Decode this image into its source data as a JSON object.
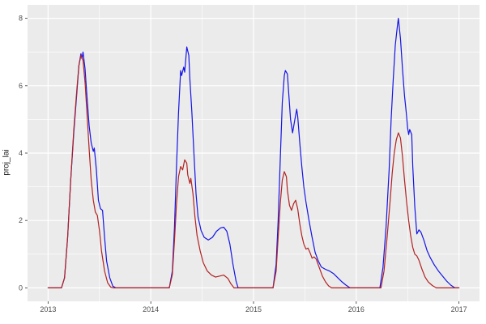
{
  "chart_data": {
    "type": "line",
    "title": "",
    "xlabel": "",
    "ylabel": "proj_lai",
    "xlim": [
      2012.8,
      2017.2
    ],
    "ylim": [
      -0.4,
      8.4
    ],
    "x_major_ticks": [
      2013,
      2014,
      2015,
      2016,
      2017
    ],
    "x_minor_ticks": [
      2013.5,
      2014.5,
      2015.5,
      2016.5
    ],
    "y_major_ticks": [
      0,
      2,
      4,
      6,
      8
    ],
    "y_minor_ticks": [
      1,
      3,
      5,
      7
    ],
    "grid": "on",
    "legend_position": "none",
    "panel_background": "#ebebeb",
    "grid_color": "#ffffff",
    "tick_color": "#333333",
    "series": [
      {
        "name": "blue-line",
        "color": "#1414e6",
        "points": [
          [
            2013.0,
            0
          ],
          [
            2013.13,
            0
          ],
          [
            2013.16,
            0.3
          ],
          [
            2013.19,
            1.5
          ],
          [
            2013.22,
            3.2
          ],
          [
            2013.25,
            4.6
          ],
          [
            2013.28,
            5.8
          ],
          [
            2013.3,
            6.6
          ],
          [
            2013.32,
            6.95
          ],
          [
            2013.33,
            6.8
          ],
          [
            2013.34,
            7.0
          ],
          [
            2013.36,
            6.5
          ],
          [
            2013.38,
            5.6
          ],
          [
            2013.4,
            4.8
          ],
          [
            2013.42,
            4.3
          ],
          [
            2013.44,
            4.05
          ],
          [
            2013.45,
            4.15
          ],
          [
            2013.47,
            3.5
          ],
          [
            2013.49,
            2.6
          ],
          [
            2013.51,
            2.35
          ],
          [
            2013.53,
            2.3
          ],
          [
            2013.55,
            1.5
          ],
          [
            2013.57,
            0.8
          ],
          [
            2013.6,
            0.3
          ],
          [
            2013.63,
            0.05
          ],
          [
            2013.66,
            0
          ],
          [
            2014.18,
            0
          ],
          [
            2014.21,
            0.5
          ],
          [
            2014.23,
            1.8
          ],
          [
            2014.25,
            3.6
          ],
          [
            2014.27,
            5.2
          ],
          [
            2014.29,
            6.45
          ],
          [
            2014.3,
            6.3
          ],
          [
            2014.32,
            6.55
          ],
          [
            2014.33,
            6.4
          ],
          [
            2014.35,
            7.15
          ],
          [
            2014.37,
            6.9
          ],
          [
            2014.38,
            6.2
          ],
          [
            2014.4,
            5.2
          ],
          [
            2014.42,
            4.0
          ],
          [
            2014.44,
            2.8
          ],
          [
            2014.46,
            2.1
          ],
          [
            2014.49,
            1.7
          ],
          [
            2014.52,
            1.5
          ],
          [
            2014.56,
            1.42
          ],
          [
            2014.6,
            1.5
          ],
          [
            2014.64,
            1.68
          ],
          [
            2014.68,
            1.78
          ],
          [
            2014.71,
            1.8
          ],
          [
            2014.74,
            1.68
          ],
          [
            2014.77,
            1.3
          ],
          [
            2014.8,
            0.7
          ],
          [
            2014.83,
            0.2
          ],
          [
            2014.85,
            0
          ],
          [
            2015.19,
            0
          ],
          [
            2015.22,
            0.7
          ],
          [
            2015.24,
            2.0
          ],
          [
            2015.26,
            3.8
          ],
          [
            2015.28,
            5.5
          ],
          [
            2015.3,
            6.3
          ],
          [
            2015.31,
            6.45
          ],
          [
            2015.33,
            6.35
          ],
          [
            2015.34,
            5.9
          ],
          [
            2015.36,
            5.0
          ],
          [
            2015.38,
            4.6
          ],
          [
            2015.4,
            4.95
          ],
          [
            2015.42,
            5.3
          ],
          [
            2015.43,
            5.1
          ],
          [
            2015.45,
            4.3
          ],
          [
            2015.47,
            3.6
          ],
          [
            2015.49,
            3.0
          ],
          [
            2015.51,
            2.55
          ],
          [
            2015.54,
            2.0
          ],
          [
            2015.57,
            1.5
          ],
          [
            2015.6,
            1.05
          ],
          [
            2015.63,
            0.8
          ],
          [
            2015.66,
            0.62
          ],
          [
            2015.7,
            0.55
          ],
          [
            2015.74,
            0.5
          ],
          [
            2015.78,
            0.42
          ],
          [
            2015.82,
            0.3
          ],
          [
            2015.86,
            0.18
          ],
          [
            2015.9,
            0.08
          ],
          [
            2015.94,
            0
          ],
          [
            2016.23,
            0
          ],
          [
            2016.26,
            0.6
          ],
          [
            2016.29,
            1.8
          ],
          [
            2016.32,
            3.5
          ],
          [
            2016.34,
            5.0
          ],
          [
            2016.36,
            6.2
          ],
          [
            2016.38,
            7.2
          ],
          [
            2016.4,
            7.75
          ],
          [
            2016.41,
            8.0
          ],
          [
            2016.43,
            7.4
          ],
          [
            2016.45,
            6.5
          ],
          [
            2016.47,
            5.7
          ],
          [
            2016.49,
            5.1
          ],
          [
            2016.5,
            4.75
          ],
          [
            2016.51,
            4.55
          ],
          [
            2016.52,
            4.7
          ],
          [
            2016.54,
            4.55
          ],
          [
            2016.55,
            3.6
          ],
          [
            2016.57,
            2.4
          ],
          [
            2016.59,
            1.6
          ],
          [
            2016.61,
            1.72
          ],
          [
            2016.63,
            1.65
          ],
          [
            2016.66,
            1.4
          ],
          [
            2016.69,
            1.1
          ],
          [
            2016.72,
            0.9
          ],
          [
            2016.76,
            0.68
          ],
          [
            2016.8,
            0.5
          ],
          [
            2016.84,
            0.35
          ],
          [
            2016.88,
            0.2
          ],
          [
            2016.92,
            0.08
          ],
          [
            2016.96,
            0
          ],
          [
            2017.0,
            0
          ]
        ]
      },
      {
        "name": "red-line",
        "color": "#b22222",
        "points": [
          [
            2013.0,
            0
          ],
          [
            2013.13,
            0
          ],
          [
            2013.16,
            0.3
          ],
          [
            2013.19,
            1.5
          ],
          [
            2013.22,
            3.2
          ],
          [
            2013.25,
            4.7
          ],
          [
            2013.28,
            5.9
          ],
          [
            2013.3,
            6.6
          ],
          [
            2013.32,
            6.9
          ],
          [
            2013.34,
            6.75
          ],
          [
            2013.36,
            6.1
          ],
          [
            2013.38,
            5.1
          ],
          [
            2013.4,
            4.1
          ],
          [
            2013.42,
            3.2
          ],
          [
            2013.44,
            2.6
          ],
          [
            2013.46,
            2.25
          ],
          [
            2013.48,
            2.15
          ],
          [
            2013.5,
            1.7
          ],
          [
            2013.52,
            1.1
          ],
          [
            2013.55,
            0.5
          ],
          [
            2013.58,
            0.15
          ],
          [
            2013.61,
            0.02
          ],
          [
            2013.64,
            0
          ],
          [
            2014.18,
            0
          ],
          [
            2014.21,
            0.4
          ],
          [
            2014.23,
            1.4
          ],
          [
            2014.25,
            2.5
          ],
          [
            2014.27,
            3.3
          ],
          [
            2014.29,
            3.6
          ],
          [
            2014.31,
            3.5
          ],
          [
            2014.33,
            3.8
          ],
          [
            2014.35,
            3.7
          ],
          [
            2014.36,
            3.35
          ],
          [
            2014.38,
            3.1
          ],
          [
            2014.39,
            3.25
          ],
          [
            2014.41,
            2.8
          ],
          [
            2014.43,
            2.1
          ],
          [
            2014.45,
            1.55
          ],
          [
            2014.48,
            1.1
          ],
          [
            2014.51,
            0.75
          ],
          [
            2014.55,
            0.5
          ],
          [
            2014.59,
            0.38
          ],
          [
            2014.63,
            0.32
          ],
          [
            2014.67,
            0.35
          ],
          [
            2014.71,
            0.38
          ],
          [
            2014.75,
            0.28
          ],
          [
            2014.78,
            0.12
          ],
          [
            2014.81,
            0
          ],
          [
            2015.19,
            0
          ],
          [
            2015.22,
            0.5
          ],
          [
            2015.24,
            1.5
          ],
          [
            2015.26,
            2.5
          ],
          [
            2015.28,
            3.2
          ],
          [
            2015.3,
            3.45
          ],
          [
            2015.32,
            3.3
          ],
          [
            2015.33,
            2.9
          ],
          [
            2015.35,
            2.45
          ],
          [
            2015.37,
            2.3
          ],
          [
            2015.39,
            2.5
          ],
          [
            2015.41,
            2.6
          ],
          [
            2015.43,
            2.35
          ],
          [
            2015.45,
            1.9
          ],
          [
            2015.47,
            1.55
          ],
          [
            2015.49,
            1.3
          ],
          [
            2015.51,
            1.15
          ],
          [
            2015.53,
            1.18
          ],
          [
            2015.55,
            1.05
          ],
          [
            2015.57,
            0.88
          ],
          [
            2015.59,
            0.92
          ],
          [
            2015.61,
            0.85
          ],
          [
            2015.64,
            0.6
          ],
          [
            2015.67,
            0.35
          ],
          [
            2015.7,
            0.18
          ],
          [
            2015.73,
            0.06
          ],
          [
            2015.76,
            0
          ],
          [
            2016.24,
            0
          ],
          [
            2016.27,
            0.5
          ],
          [
            2016.3,
            1.5
          ],
          [
            2016.33,
            2.6
          ],
          [
            2016.35,
            3.4
          ],
          [
            2016.37,
            4.0
          ],
          [
            2016.39,
            4.4
          ],
          [
            2016.41,
            4.6
          ],
          [
            2016.43,
            4.45
          ],
          [
            2016.45,
            3.9
          ],
          [
            2016.47,
            3.2
          ],
          [
            2016.49,
            2.55
          ],
          [
            2016.51,
            2.0
          ],
          [
            2016.53,
            1.55
          ],
          [
            2016.55,
            1.2
          ],
          [
            2016.57,
            1.0
          ],
          [
            2016.59,
            0.95
          ],
          [
            2016.61,
            0.82
          ],
          [
            2016.64,
            0.55
          ],
          [
            2016.67,
            0.32
          ],
          [
            2016.7,
            0.18
          ],
          [
            2016.74,
            0.07
          ],
          [
            2016.78,
            0
          ],
          [
            2017.0,
            0
          ]
        ]
      }
    ]
  }
}
